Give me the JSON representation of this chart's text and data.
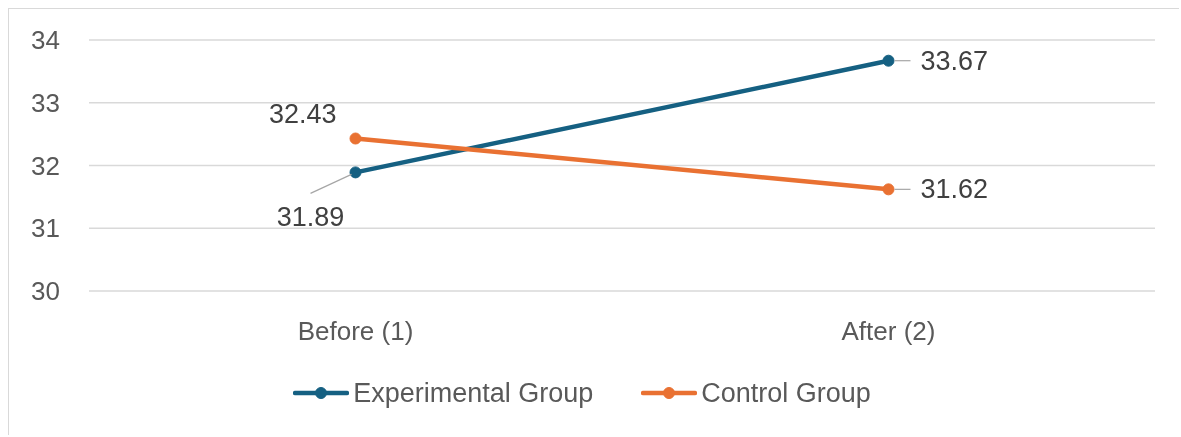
{
  "chart_data": {
    "type": "line",
    "categories": [
      "Before (1)",
      "After (2)"
    ],
    "series": [
      {
        "name": "Experimental Group",
        "color": "#156082",
        "values": [
          31.89,
          33.67
        ]
      },
      {
        "name": "Control Group",
        "color": "#e97132",
        "values": [
          32.43,
          31.62
        ]
      }
    ],
    "ylim": [
      30,
      34
    ],
    "yticks": [
      30,
      31,
      32,
      33,
      34
    ],
    "grid": "y",
    "legend": "bottom",
    "marker": "circle",
    "line_style": "solid",
    "data_labels": true
  }
}
